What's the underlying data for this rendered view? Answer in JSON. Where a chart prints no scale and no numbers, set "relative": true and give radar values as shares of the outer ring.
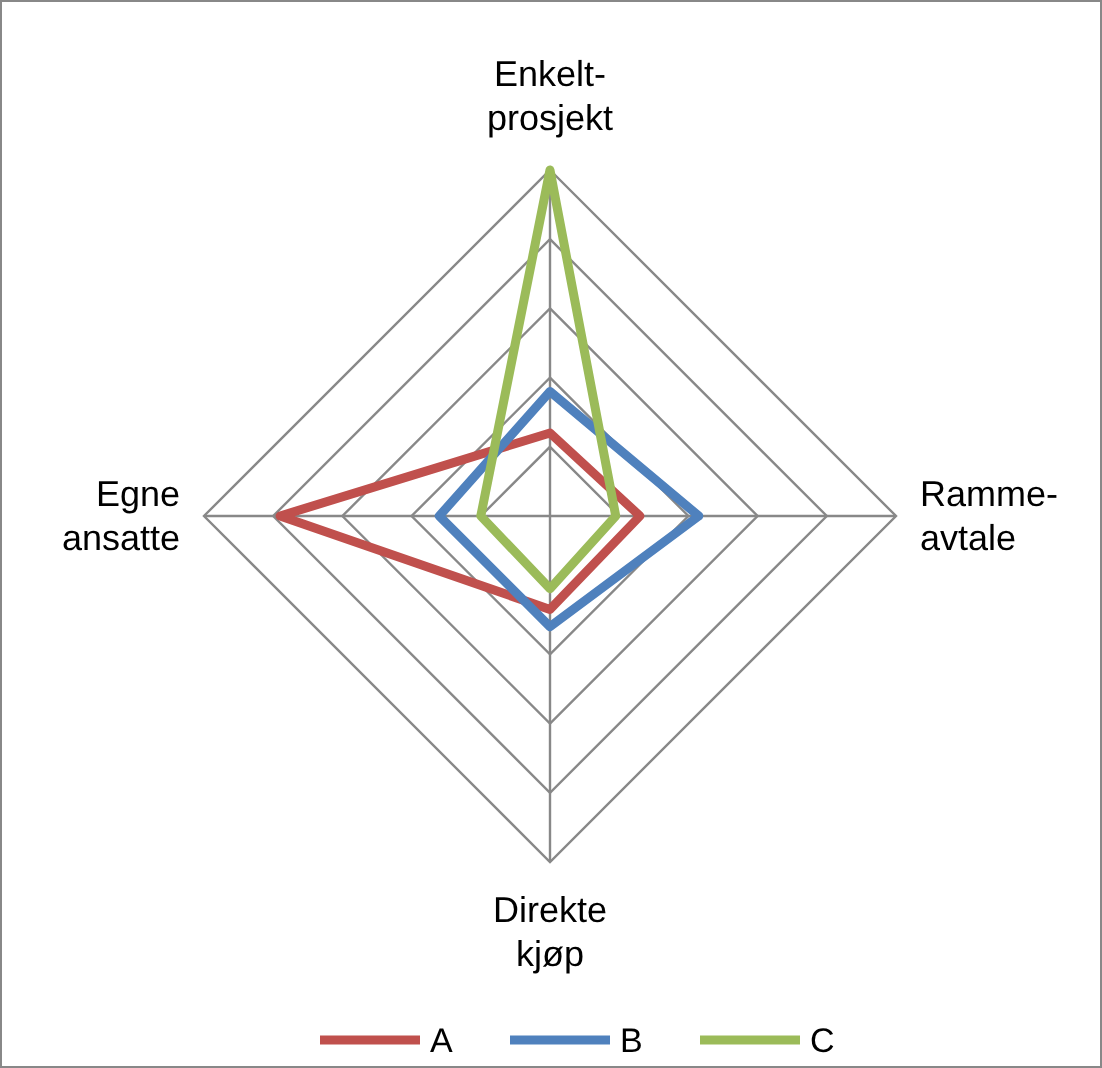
{
  "chart_data": {
    "type": "radar",
    "relative": true,
    "categories": [
      "Enkelt-\nprosjekt",
      "Ramme-\navtale",
      "Direkte\nkjøp",
      "Egne\nansatte"
    ],
    "grid": true,
    "legend": "bottom",
    "series": [
      {
        "name": "A",
        "color": "#c0504d",
        "values": [
          0.24,
          0.26,
          0.27,
          0.78
        ]
      },
      {
        "name": "B",
        "color": "#4f81bd",
        "values": [
          0.36,
          0.43,
          0.32,
          0.32
        ]
      },
      {
        "name": "C",
        "color": "#9bbb59",
        "values": [
          1.0,
          0.19,
          0.21,
          0.2
        ]
      }
    ]
  }
}
